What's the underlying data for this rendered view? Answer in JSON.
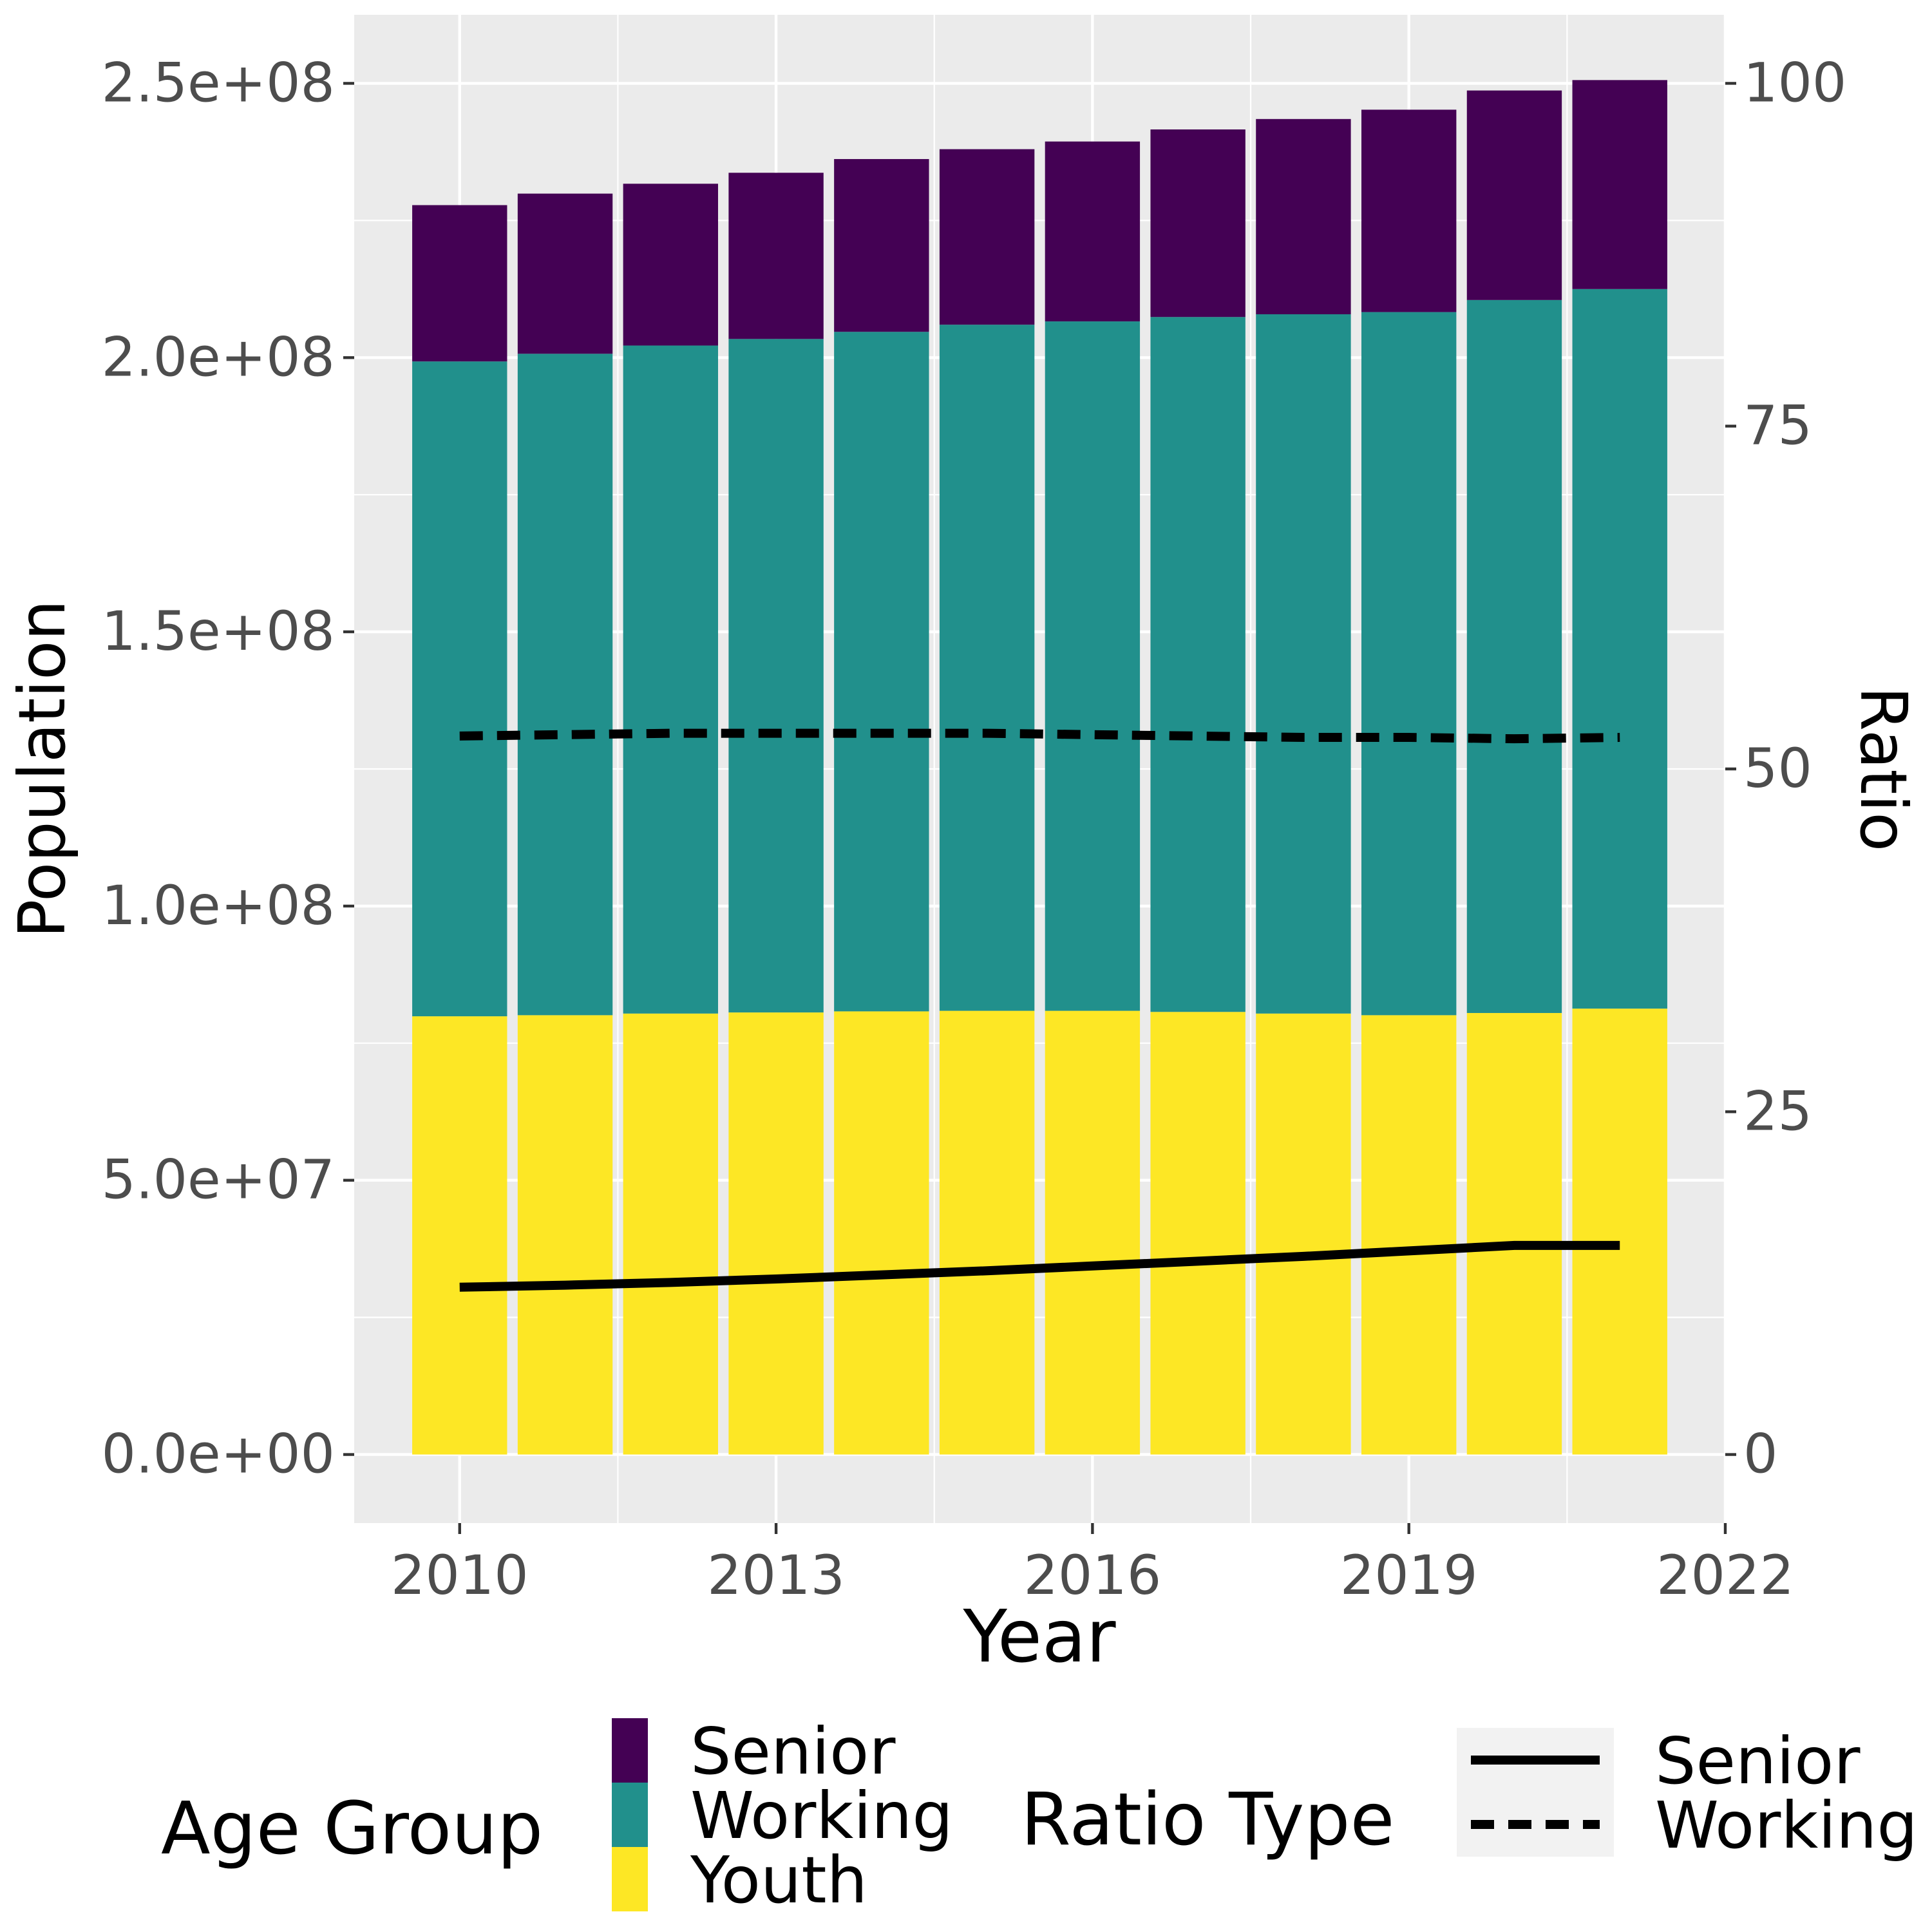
{
  "chart_data": {
    "type": "bar",
    "subtype": "stacked bar with line overlay on secondary axis",
    "x": [
      2010,
      2011,
      2012,
      2013,
      2014,
      2015,
      2016,
      2017,
      2018,
      2019,
      2020,
      2021
    ],
    "xlabel": "Year",
    "ylabel": "Population",
    "y2label": "Ratio",
    "xlim": [
      2009,
      2022
    ],
    "ylim": [
      -12500000,
      262500000
    ],
    "y2lim": [
      -5,
      105
    ],
    "x_ticks": [
      "2010",
      "2013",
      "2016",
      "2019",
      "2022"
    ],
    "x_tick_values": [
      2010,
      2013,
      2016,
      2019,
      2022
    ],
    "y_ticks": [
      "0.0e+00",
      "5.0e+07",
      "1.0e+08",
      "1.5e+08",
      "2.0e+08",
      "2.5e+08"
    ],
    "y_tick_values": [
      0,
      50000000,
      100000000,
      150000000,
      200000000,
      250000000
    ],
    "y2_ticks": [
      "0",
      "25",
      "50",
      "75",
      "100"
    ],
    "y2_tick_values": [
      0,
      25,
      50,
      75,
      100
    ],
    "grid": true,
    "legend_position": "bottom",
    "stack_series": [
      {
        "name": "Youth",
        "color": "#FDE725",
        "values": [
          79900000,
          80100000,
          80400000,
          80600000,
          80800000,
          80900000,
          80900000,
          80700000,
          80400000,
          80100000,
          80500000,
          81300000
        ]
      },
      {
        "name": "Working",
        "color": "#21908C",
        "values": [
          119400000,
          120600000,
          121800000,
          122800000,
          123900000,
          125100000,
          125700000,
          126700000,
          127500000,
          128200000,
          130000000,
          131200000
        ]
      },
      {
        "name": "Senior",
        "color": "#440154",
        "values": [
          28500000,
          29200000,
          29500000,
          30300000,
          31500000,
          32000000,
          32800000,
          34200000,
          35600000,
          36900000,
          38200000,
          38100000
        ]
      }
    ],
    "line_series": [
      {
        "name": "Senior",
        "style": "solid",
        "values": [
          12.2,
          12.35,
          12.55,
          12.8,
          13.1,
          13.4,
          13.75,
          14.1,
          14.45,
          14.85,
          15.25,
          15.25
        ]
      },
      {
        "name": "Working",
        "style": "dashed",
        "values": [
          52.4,
          52.5,
          52.6,
          52.6,
          52.6,
          52.6,
          52.5,
          52.4,
          52.3,
          52.3,
          52.2,
          52.3
        ]
      }
    ],
    "legends": {
      "age_group": {
        "title": "Age Group",
        "items": [
          "Senior",
          "Working",
          "Youth"
        ]
      },
      "ratio_type": {
        "title": "Ratio Type",
        "items": [
          "Senior",
          "Working"
        ]
      }
    }
  }
}
